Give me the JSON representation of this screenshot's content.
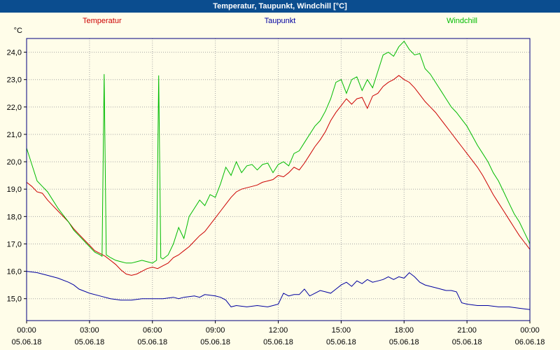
{
  "window": {
    "title": "Temperatur, Taupunkt, Windchill [°C]"
  },
  "chart_data": {
    "type": "line",
    "title": "Temperatur, Taupunkt, Windchill [°C]",
    "y_unit": "°C",
    "xlim": [
      0,
      24
    ],
    "ylim": [
      14.2,
      24.5
    ],
    "grid": "dotted",
    "legend_position": "top",
    "border_color": "#000080",
    "grid_color": "#a6a6a6",
    "background_color": "#fffde9",
    "yticks": [
      {
        "value": 15,
        "label": "15,0"
      },
      {
        "value": 16,
        "label": "16,0"
      },
      {
        "value": 17,
        "label": "17,0"
      },
      {
        "value": 18,
        "label": "18,0"
      },
      {
        "value": 19,
        "label": "19,0"
      },
      {
        "value": 20,
        "label": "20,0"
      },
      {
        "value": 21,
        "label": "21,0"
      },
      {
        "value": 22,
        "label": "22,0"
      },
      {
        "value": 23,
        "label": "23,0"
      },
      {
        "value": 24,
        "label": "24,0"
      }
    ],
    "xticks": [
      {
        "hour": 0,
        "time": "00:00",
        "date": "05.06.18"
      },
      {
        "hour": 3,
        "time": "03:00",
        "date": "05.06.18"
      },
      {
        "hour": 6,
        "time": "06:00",
        "date": "05.06.18"
      },
      {
        "hour": 9,
        "time": "09:00",
        "date": "05.06.18"
      },
      {
        "hour": 12,
        "time": "12:00",
        "date": "05.06.18"
      },
      {
        "hour": 15,
        "time": "15:00",
        "date": "05.06.18"
      },
      {
        "hour": 18,
        "time": "18:00",
        "date": "05.06.18"
      },
      {
        "hour": 21,
        "time": "21:00",
        "date": "05.06.18"
      },
      {
        "hour": 24,
        "time": "00:00",
        "date": "06.06.18"
      }
    ],
    "series": [
      {
        "name": "Temperatur",
        "color": "#cc0000",
        "points": [
          [
            0,
            19.25
          ],
          [
            0.25,
            19.1
          ],
          [
            0.5,
            18.9
          ],
          [
            0.75,
            18.85
          ],
          [
            1,
            18.6
          ],
          [
            1.25,
            18.4
          ],
          [
            1.5,
            18.2
          ],
          [
            1.75,
            18.0
          ],
          [
            2,
            17.8
          ],
          [
            2.25,
            17.55
          ],
          [
            2.5,
            17.35
          ],
          [
            2.75,
            17.15
          ],
          [
            3,
            16.95
          ],
          [
            3.25,
            16.75
          ],
          [
            3.5,
            16.65
          ],
          [
            3.75,
            16.55
          ],
          [
            4,
            16.4
          ],
          [
            4.25,
            16.25
          ],
          [
            4.5,
            16.05
          ],
          [
            4.75,
            15.9
          ],
          [
            5,
            15.85
          ],
          [
            5.25,
            15.9
          ],
          [
            5.5,
            16.0
          ],
          [
            5.75,
            16.1
          ],
          [
            6,
            16.15
          ],
          [
            6.25,
            16.1
          ],
          [
            6.5,
            16.2
          ],
          [
            6.75,
            16.3
          ],
          [
            7,
            16.5
          ],
          [
            7.25,
            16.6
          ],
          [
            7.5,
            16.75
          ],
          [
            7.75,
            16.9
          ],
          [
            8,
            17.1
          ],
          [
            8.25,
            17.3
          ],
          [
            8.5,
            17.45
          ],
          [
            8.75,
            17.7
          ],
          [
            9,
            17.95
          ],
          [
            9.25,
            18.2
          ],
          [
            9.5,
            18.45
          ],
          [
            9.75,
            18.7
          ],
          [
            10,
            18.9
          ],
          [
            10.25,
            19.0
          ],
          [
            10.5,
            19.05
          ],
          [
            10.75,
            19.1
          ],
          [
            11,
            19.15
          ],
          [
            11.25,
            19.25
          ],
          [
            11.5,
            19.3
          ],
          [
            11.75,
            19.35
          ],
          [
            12,
            19.5
          ],
          [
            12.25,
            19.45
          ],
          [
            12.5,
            19.6
          ],
          [
            12.75,
            19.8
          ],
          [
            13,
            19.7
          ],
          [
            13.25,
            19.95
          ],
          [
            13.5,
            20.25
          ],
          [
            13.75,
            20.55
          ],
          [
            14,
            20.8
          ],
          [
            14.25,
            21.1
          ],
          [
            14.5,
            21.5
          ],
          [
            14.75,
            21.8
          ],
          [
            15,
            22.05
          ],
          [
            15.25,
            22.3
          ],
          [
            15.5,
            22.1
          ],
          [
            15.75,
            22.3
          ],
          [
            16,
            22.35
          ],
          [
            16.25,
            21.95
          ],
          [
            16.5,
            22.4
          ],
          [
            16.75,
            22.5
          ],
          [
            17,
            22.75
          ],
          [
            17.25,
            22.9
          ],
          [
            17.5,
            23.0
          ],
          [
            17.75,
            23.15
          ],
          [
            18,
            23.0
          ],
          [
            18.25,
            22.9
          ],
          [
            18.5,
            22.7
          ],
          [
            18.75,
            22.45
          ],
          [
            19,
            22.2
          ],
          [
            19.25,
            22.0
          ],
          [
            19.5,
            21.8
          ],
          [
            19.75,
            21.55
          ],
          [
            20,
            21.3
          ],
          [
            20.25,
            21.05
          ],
          [
            20.5,
            20.8
          ],
          [
            20.75,
            20.55
          ],
          [
            21,
            20.3
          ],
          [
            21.25,
            20.05
          ],
          [
            21.5,
            19.8
          ],
          [
            21.75,
            19.5
          ],
          [
            22,
            19.15
          ],
          [
            22.25,
            18.8
          ],
          [
            22.5,
            18.5
          ],
          [
            22.75,
            18.2
          ],
          [
            23,
            17.9
          ],
          [
            23.25,
            17.6
          ],
          [
            23.5,
            17.3
          ],
          [
            23.75,
            17.05
          ],
          [
            24,
            16.8
          ]
        ]
      },
      {
        "name": "Taupunkt",
        "color": "#0000a0",
        "points": [
          [
            0,
            16.0
          ],
          [
            0.5,
            15.95
          ],
          [
            1,
            15.85
          ],
          [
            1.5,
            15.75
          ],
          [
            2,
            15.6
          ],
          [
            2.25,
            15.5
          ],
          [
            2.5,
            15.35
          ],
          [
            3,
            15.2
          ],
          [
            3.5,
            15.1
          ],
          [
            4,
            15.0
          ],
          [
            4.5,
            14.95
          ],
          [
            5,
            14.95
          ],
          [
            5.5,
            15.0
          ],
          [
            6,
            15.0
          ],
          [
            6.5,
            15.0
          ],
          [
            7,
            15.05
          ],
          [
            7.25,
            15.0
          ],
          [
            7.5,
            15.05
          ],
          [
            8,
            15.1
          ],
          [
            8.25,
            15.05
          ],
          [
            8.5,
            15.15
          ],
          [
            9,
            15.1
          ],
          [
            9.25,
            15.05
          ],
          [
            9.5,
            14.95
          ],
          [
            9.75,
            14.7
          ],
          [
            10,
            14.75
          ],
          [
            10.5,
            14.7
          ],
          [
            11,
            14.75
          ],
          [
            11.5,
            14.7
          ],
          [
            11.75,
            14.75
          ],
          [
            12,
            14.8
          ],
          [
            12.25,
            15.2
          ],
          [
            12.5,
            15.1
          ],
          [
            12.75,
            15.15
          ],
          [
            13,
            15.15
          ],
          [
            13.25,
            15.35
          ],
          [
            13.5,
            15.1
          ],
          [
            13.75,
            15.2
          ],
          [
            14,
            15.3
          ],
          [
            14.25,
            15.25
          ],
          [
            14.5,
            15.2
          ],
          [
            14.75,
            15.35
          ],
          [
            15,
            15.5
          ],
          [
            15.25,
            15.6
          ],
          [
            15.5,
            15.45
          ],
          [
            15.75,
            15.65
          ],
          [
            16,
            15.55
          ],
          [
            16.25,
            15.7
          ],
          [
            16.5,
            15.6
          ],
          [
            16.75,
            15.65
          ],
          [
            17,
            15.7
          ],
          [
            17.25,
            15.8
          ],
          [
            17.5,
            15.7
          ],
          [
            17.75,
            15.8
          ],
          [
            18,
            15.75
          ],
          [
            18.25,
            15.95
          ],
          [
            18.5,
            15.8
          ],
          [
            18.75,
            15.6
          ],
          [
            19,
            15.5
          ],
          [
            19.25,
            15.45
          ],
          [
            19.5,
            15.4
          ],
          [
            19.75,
            15.35
          ],
          [
            20,
            15.3
          ],
          [
            20.25,
            15.3
          ],
          [
            20.5,
            15.25
          ],
          [
            20.75,
            14.85
          ],
          [
            21,
            14.8
          ],
          [
            21.5,
            14.75
          ],
          [
            22,
            14.75
          ],
          [
            22.5,
            14.7
          ],
          [
            23,
            14.7
          ],
          [
            23.5,
            14.65
          ],
          [
            24,
            14.6
          ]
        ]
      },
      {
        "name": "Windchill",
        "color": "#00bb00",
        "points": [
          [
            0,
            20.5
          ],
          [
            0.25,
            19.9
          ],
          [
            0.5,
            19.3
          ],
          [
            0.75,
            19.1
          ],
          [
            1,
            18.9
          ],
          [
            1.25,
            18.6
          ],
          [
            1.5,
            18.3
          ],
          [
            1.75,
            18.05
          ],
          [
            2,
            17.8
          ],
          [
            2.25,
            17.5
          ],
          [
            2.5,
            17.3
          ],
          [
            2.75,
            17.1
          ],
          [
            3,
            16.9
          ],
          [
            3.25,
            16.7
          ],
          [
            3.5,
            16.6
          ],
          [
            3.6,
            16.55
          ],
          [
            3.7,
            23.2
          ],
          [
            3.8,
            16.6
          ],
          [
            4,
            16.5
          ],
          [
            4.25,
            16.4
          ],
          [
            4.5,
            16.35
          ],
          [
            4.75,
            16.3
          ],
          [
            5,
            16.3
          ],
          [
            5.25,
            16.35
          ],
          [
            5.5,
            16.4
          ],
          [
            5.75,
            16.35
          ],
          [
            6,
            16.3
          ],
          [
            6.2,
            16.4
          ],
          [
            6.3,
            23.15
          ],
          [
            6.4,
            16.5
          ],
          [
            6.5,
            16.45
          ],
          [
            6.75,
            16.6
          ],
          [
            7,
            17.0
          ],
          [
            7.25,
            17.6
          ],
          [
            7.5,
            17.2
          ],
          [
            7.75,
            18.0
          ],
          [
            8,
            18.3
          ],
          [
            8.25,
            18.6
          ],
          [
            8.5,
            18.4
          ],
          [
            8.75,
            18.8
          ],
          [
            9,
            18.7
          ],
          [
            9.25,
            19.2
          ],
          [
            9.5,
            19.8
          ],
          [
            9.75,
            19.5
          ],
          [
            10,
            20.0
          ],
          [
            10.25,
            19.6
          ],
          [
            10.5,
            19.85
          ],
          [
            10.75,
            19.9
          ],
          [
            11,
            19.7
          ],
          [
            11.25,
            19.9
          ],
          [
            11.5,
            19.95
          ],
          [
            11.75,
            19.6
          ],
          [
            12,
            19.9
          ],
          [
            12.25,
            20.0
          ],
          [
            12.5,
            19.85
          ],
          [
            12.75,
            20.3
          ],
          [
            13,
            20.4
          ],
          [
            13.25,
            20.7
          ],
          [
            13.5,
            21.0
          ],
          [
            13.75,
            21.3
          ],
          [
            14,
            21.5
          ],
          [
            14.25,
            21.85
          ],
          [
            14.5,
            22.3
          ],
          [
            14.75,
            22.9
          ],
          [
            15,
            23.0
          ],
          [
            15.25,
            22.5
          ],
          [
            15.5,
            23.0
          ],
          [
            15.75,
            23.1
          ],
          [
            16,
            22.6
          ],
          [
            16.25,
            23.0
          ],
          [
            16.5,
            22.7
          ],
          [
            16.75,
            23.3
          ],
          [
            17,
            23.9
          ],
          [
            17.25,
            24.0
          ],
          [
            17.5,
            23.85
          ],
          [
            17.75,
            24.2
          ],
          [
            18,
            24.4
          ],
          [
            18.25,
            24.1
          ],
          [
            18.5,
            23.9
          ],
          [
            18.75,
            23.95
          ],
          [
            19,
            23.4
          ],
          [
            19.25,
            23.2
          ],
          [
            19.5,
            22.9
          ],
          [
            19.75,
            22.6
          ],
          [
            20,
            22.3
          ],
          [
            20.25,
            22.0
          ],
          [
            20.5,
            21.8
          ],
          [
            20.75,
            21.55
          ],
          [
            21,
            21.3
          ],
          [
            21.25,
            20.95
          ],
          [
            21.5,
            20.6
          ],
          [
            21.75,
            20.3
          ],
          [
            22,
            20.0
          ],
          [
            22.25,
            19.6
          ],
          [
            22.5,
            19.3
          ],
          [
            22.75,
            18.9
          ],
          [
            23,
            18.5
          ],
          [
            23.25,
            18.1
          ],
          [
            23.5,
            17.8
          ],
          [
            23.75,
            17.4
          ],
          [
            24,
            17.0
          ]
        ]
      }
    ]
  }
}
